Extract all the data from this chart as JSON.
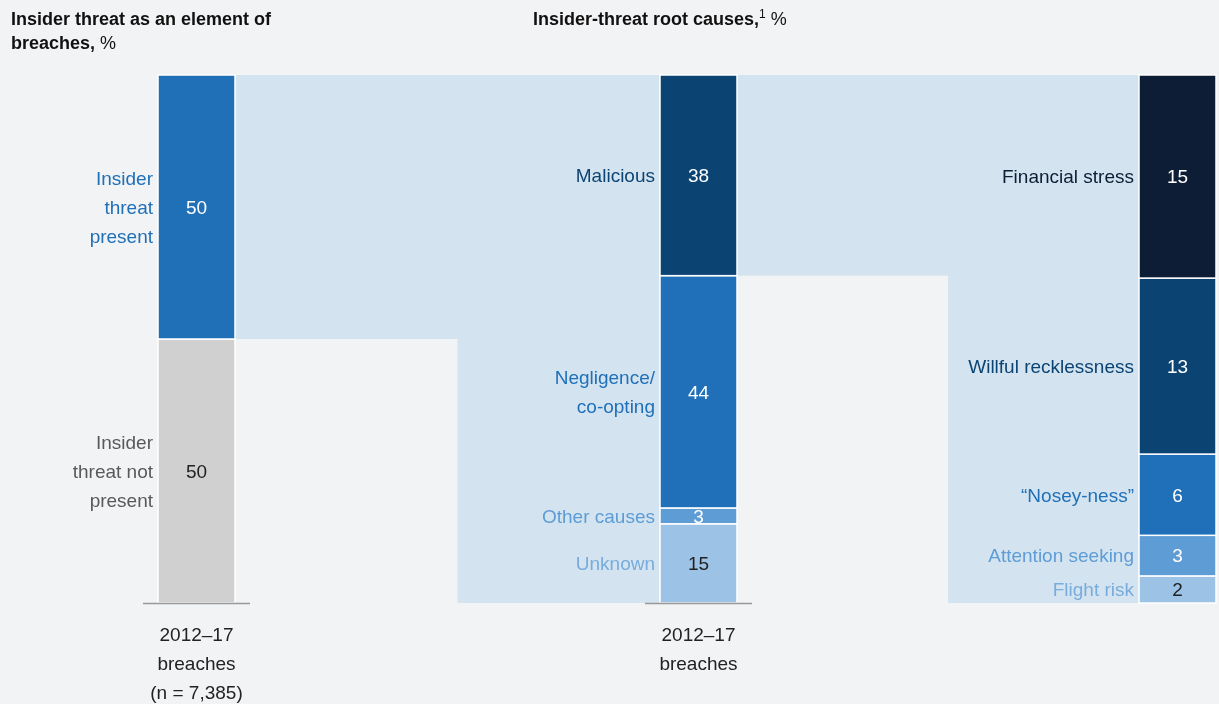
{
  "chart_data": [
    {
      "type": "bar",
      "title": "Insider threat as an element of breaches, %",
      "categories": [
        "2012–17 breaches (n = 7,385)"
      ],
      "stacked": true,
      "data_labels": true,
      "legend": false,
      "series": [
        {
          "name": "Insider threat not present",
          "color": "#d0d0d0",
          "values": [
            50
          ]
        },
        {
          "name": "Insider threat present",
          "color": "#2070b8",
          "values": [
            50
          ]
        }
      ]
    },
    {
      "type": "bar",
      "title": "Insider-threat root causes,$^{1}$ %",
      "categories": [
        "2012–17 breaches"
      ],
      "stacked": true,
      "data_labels": true,
      "legend": false,
      "series": [
        {
          "name": "Unknown",
          "color": "#9cc2e5",
          "values": [
            15
          ]
        },
        {
          "name": "Other causes",
          "color": "#5e9cd6",
          "values": [
            3
          ]
        },
        {
          "name": "Negligence/co-opting",
          "color": "#1f70b8",
          "values": [
            44
          ]
        },
        {
          "name": "Malicious",
          "color": "#0b4373",
          "values": [
            38
          ]
        }
      ]
    },
    {
      "type": "bar",
      "categories": [
        null
      ],
      "stacked": true,
      "data_labels": true,
      "legend": false,
      "series": [
        {
          "name": "Flight risk",
          "color": "#9cc2e5",
          "values": [
            2
          ]
        },
        {
          "name": "Attention seeking",
          "color": "#5e9cd6",
          "values": [
            3
          ]
        },
        {
          "name": "“Nosey-ness”",
          "color": "#1f70b8",
          "values": [
            6
          ]
        },
        {
          "name": "Willful recklessness",
          "color": "#0b4373",
          "values": [
            13
          ]
        },
        {
          "name": "Financial stress",
          "color": "#0e1d36",
          "values": [
            15
          ]
        }
      ]
    }
  ]
}
